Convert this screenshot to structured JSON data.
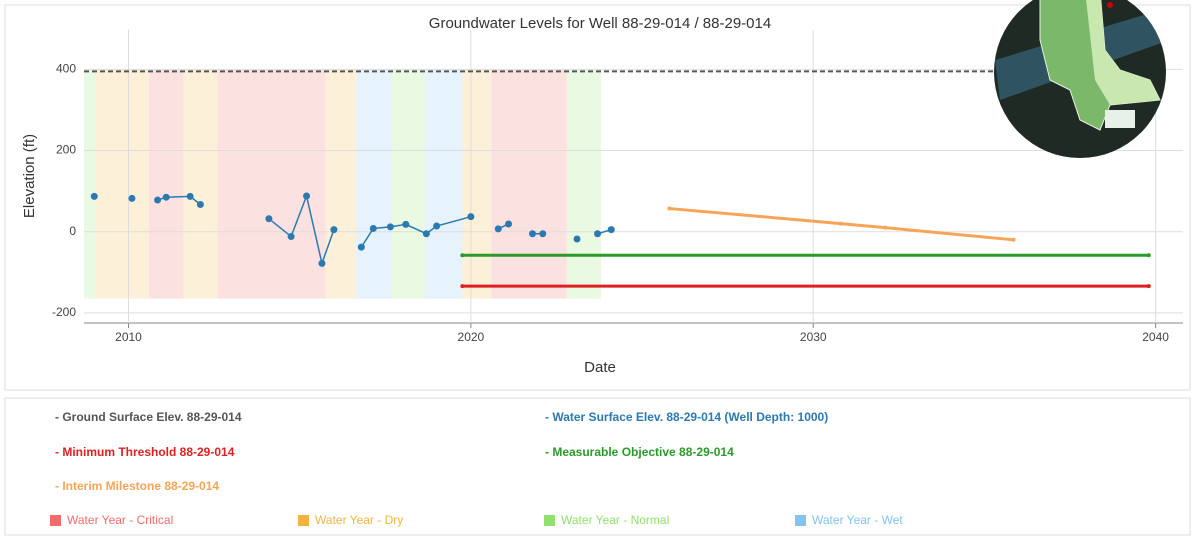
{
  "chart_data": {
    "type": "line",
    "title": "Groundwater Levels for Well 88-29-014 / 88-29-014",
    "x_label": "Date",
    "y_label": "Elevation (ft)",
    "xlim": [
      2008.7,
      2040.8
    ],
    "xticks": [
      2010,
      2020,
      2030,
      2040
    ],
    "ylim": [
      -225,
      497
    ],
    "yticks": [
      -200,
      0,
      200,
      400
    ],
    "grid": true,
    "series": [
      {
        "name": "- Ground Surface Elev. 88-29-014",
        "color": "#555555",
        "style": "dashed",
        "x": [
          2008.7,
          2040.0
        ],
        "values": [
          395,
          395
        ]
      },
      {
        "name": "- Water Surface Elev. 88-29-014  (Well Depth: 1000)",
        "color": "#2a7ab0",
        "style": "markers",
        "x": [
          2009.0,
          null,
          2010.1,
          null,
          2010.85,
          2011.1,
          2011.8,
          2012.1,
          null,
          2014.1,
          2014.75,
          2015.2,
          2015.65,
          2016.0,
          null,
          2016.8,
          2017.15,
          2017.65,
          2018.1,
          2018.7,
          2019.0,
          2020.0,
          null,
          2020.8,
          2021.1,
          null,
          2021.8,
          2022.1,
          null,
          2023.1,
          null,
          2023.7,
          2024.1
        ],
        "values": [
          87,
          null,
          82,
          null,
          78,
          85,
          87,
          67,
          null,
          32,
          -12,
          88,
          -78,
          5,
          null,
          -38,
          8,
          12,
          18,
          -5,
          14,
          37,
          null,
          7,
          19,
          null,
          -5,
          -5,
          null,
          -18,
          null,
          -5,
          5
        ]
      },
      {
        "name": "- Minimum Threshold 88-29-014",
        "color": "#e02020",
        "style": "solid",
        "x": [
          2019.75,
          2039.8
        ],
        "values": [
          -134,
          -134
        ]
      },
      {
        "name": "- Measurable Objective 88-29-014",
        "color": "#2a9a2a",
        "style": "solid",
        "x": [
          2019.75,
          2039.8
        ],
        "values": [
          -58,
          -58
        ]
      },
      {
        "name": "- Interim Milestone 88-29-014",
        "color": "#f7a456",
        "style": "solid",
        "x": [
          2025.8,
          2030.8,
          2032.1,
          2035.85
        ],
        "values": [
          57,
          20,
          10,
          -20
        ]
      }
    ],
    "water_years": [
      {
        "name": "Water Year - Critical",
        "color": "#f26b6b",
        "periods": [
          [
            2010.6,
            2011.6
          ],
          [
            2012.6,
            2015.75
          ],
          [
            2020.6,
            2022.8
          ]
        ]
      },
      {
        "name": "Water Year - Dry",
        "color": "#f2b441",
        "periods": [
          [
            2009.05,
            2010.6
          ],
          [
            2011.6,
            2012.6
          ],
          [
            2015.75,
            2016.65
          ],
          [
            2019.75,
            2020.6
          ]
        ]
      },
      {
        "name": "Water Year - Normal",
        "color": "#92e06e",
        "periods": [
          [
            2008.7,
            2009.05
          ],
          [
            2017.7,
            2018.65
          ],
          [
            2022.8,
            2023.8
          ]
        ]
      },
      {
        "name": "Water Year - Wet",
        "color": "#82c3f0",
        "periods": [
          [
            2016.65,
            2017.7
          ],
          [
            2018.65,
            2019.75
          ]
        ]
      }
    ],
    "band_range": [
      -165,
      400
    ]
  }
}
